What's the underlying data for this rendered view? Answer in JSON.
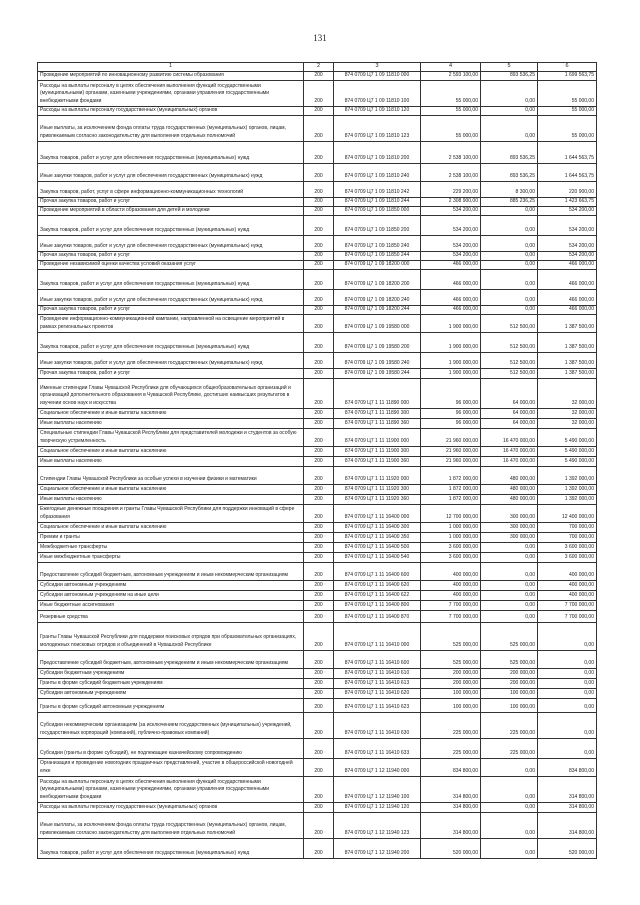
{
  "page_number": "131",
  "header": [
    "1",
    "2",
    "3",
    "4",
    "5",
    "6"
  ],
  "rows": [
    {
      "name": "Проведение мероприятий по инновационному развитию системы образования",
      "c2": "200",
      "code": "874 0709 Ц7 1 09 11810 000",
      "c4": "2 593 100,00",
      "c5": "893 536,25",
      "c6": "1 699 563,75"
    },
    {
      "name": "Расходы на выплаты персоналу в целях обеспечения выполнения функций государственными (муниципальными) органами, казенными учреждениями, органами управления государственными внебюджетными фондами",
      "c2": "200",
      "code": "874 0709 Ц7 1 09 11810 100",
      "c4": "55 000,00",
      "c5": "0,00",
      "c6": "55 000,00"
    },
    {
      "name": "Расходы на выплаты персоналу государственных (муниципальных) органов",
      "c2": "200",
      "code": "874 0709 Ц7 1 09 11810 120",
      "c4": "55 000,00",
      "c5": "0,00",
      "c6": "55 000,00"
    },
    {
      "name": "Иные выплаты, за исключением фонда оплаты труда государственных (муниципальных) органов, лицам, привлекаемым согласно законодательству для выполнения отдельных полномочий",
      "c2": "200",
      "code": "874 0709 Ц7 1 09 11810 123",
      "c4": "55 000,00",
      "c5": "0,00",
      "c6": "55 000,00"
    },
    {
      "name": "Закупка товаров, работ и услуг для обеспечения государственных (муниципальных) нужд",
      "c2": "200",
      "code": "874 0709 Ц7 1 09 11810 200",
      "c4": "2 538 100,00",
      "c5": "893 536,25",
      "c6": "1 644 563,75"
    },
    {
      "name": "Иные закупки товаров, работ и услуг для обеспечения государственных (муниципальных) нужд",
      "c2": "200",
      "code": "874 0709 Ц7 1 09 11810 240",
      "c4": "2 538 100,00",
      "c5": "893 536,25",
      "c6": "1 644 563,75"
    },
    {
      "name": "Закупка товаров, работ, услуг в сфере информационно-коммуникационных технологий",
      "c2": "200",
      "code": "874 0709 Ц7 1 09 11810 242",
      "c4": "229 200,00",
      "c5": "8 300,00",
      "c6": "220 900,00"
    },
    {
      "name": "Прочая закупка товаров, работ и услуг",
      "c2": "200",
      "code": "874 0709 Ц7 1 09 11810 244",
      "c4": "2 308 900,00",
      "c5": "885 236,25",
      "c6": "1 423 663,75"
    },
    {
      "name": "Проведение мероприятий в области образования для детей и молодежи",
      "c2": "200",
      "code": "874 0709 Ц7 1 09 11850 000",
      "c4": "534 200,00",
      "c5": "0,00",
      "c6": "534 200,00"
    },
    {
      "name": "Закупка товаров, работ и услуг для обеспечения государственных (муниципальных) нужд",
      "c2": "200",
      "code": "874 0709 Ц7 1 09 11850 200",
      "c4": "534 200,00",
      "c5": "0,00",
      "c6": "534 200,00"
    },
    {
      "name": "Иные закупки товаров, работ и услуг для обеспечения государственных (муниципальных) нужд",
      "c2": "200",
      "code": "874 0709 Ц7 1 09 11850 240",
      "c4": "534 200,00",
      "c5": "0,00",
      "c6": "534 200,00"
    },
    {
      "name": "Прочая закупка товаров, работ и услуг",
      "c2": "200",
      "code": "874 0709 Ц7 1 09 11850 244",
      "c4": "534 200,00",
      "c5": "0,00",
      "c6": "534 200,00"
    },
    {
      "name": "Проведение независимой оценки качества условий оказания услуг",
      "c2": "200",
      "code": "874 0709 Ц7 1 09 18200 000",
      "c4": "466 000,00",
      "c5": "0,00",
      "c6": "466 000,00"
    },
    {
      "name": "Закупка товаров, работ и услуг для обеспечения государственных (муниципальных) нужд",
      "c2": "200",
      "code": "874 0709 Ц7 1 09 18200 200",
      "c4": "466 000,00",
      "c5": "0,00",
      "c6": "466 000,00"
    },
    {
      "name": "Иные закупки товаров, работ и услуг для обеспечения государственных (муниципальных) нужд",
      "c2": "200",
      "code": "874 0709 Ц7 1 09 18200 240",
      "c4": "466 000,00",
      "c5": "0,00",
      "c6": "466 000,00"
    },
    {
      "name": "Прочая закупка товаров, работ и услуг",
      "c2": "200",
      "code": "874 0709 Ц7 1 09 18200 244",
      "c4": "466 000,00",
      "c5": "0,00",
      "c6": "466 000,00"
    },
    {
      "name": "Проведение информационно-коммуникационной кампании, направленной на освещение мероприятий в рамках региональных проектов",
      "c2": "200",
      "code": "874 0709 Ц7 1 09 19580 000",
      "c4": "1 900 000,00",
      "c5": "512 500,00",
      "c6": "1 387 500,00"
    },
    {
      "name": "Закупка товаров, работ и услуг для обеспечения государственных (муниципальных) нужд",
      "c2": "200",
      "code": "874 0709 Ц7 1 09 19580 200",
      "c4": "1 900 000,00",
      "c5": "512 500,00",
      "c6": "1 387 500,00"
    },
    {
      "name": "Иные закупки товаров, работ и услуг для обеспечения государственных (муниципальных) нужд",
      "c2": "200",
      "code": "874 0709 Ц7 1 09 19580 240",
      "c4": "1 900 000,00",
      "c5": "512 500,00",
      "c6": "1 387 500,00"
    },
    {
      "name": "Прочая закупка товаров, работ и услуг",
      "c2": "200",
      "code": "874 0709 Ц7 1 09 19580 244",
      "c4": "1 900 000,00",
      "c5": "512 500,00",
      "c6": "1 387 500,00"
    },
    {
      "name": "Именные стипендии Главы Чувашской Республики для обучающихся общеобразовательных организаций и организаций дополнительного образования в Чувашской Республике, достигших наивысших результатов в изучении основ наук и искусства",
      "c2": "200",
      "code": "874 0709 Ц7 1 11 11890 000",
      "c4": "96 000,00",
      "c5": "64 000,00",
      "c6": "32 000,00"
    },
    {
      "name": "Социальное обеспечение и иные выплаты населению",
      "c2": "200",
      "code": "874 0709 Ц7 1 11 11890 300",
      "c4": "96 000,00",
      "c5": "64 000,00",
      "c6": "32 000,00"
    },
    {
      "name": "Иные выплаты населению",
      "c2": "200",
      "code": "874 0709 Ц7 1 11 11890 360",
      "c4": "96 000,00",
      "c5": "64 000,00",
      "c6": "32 000,00"
    },
    {
      "name": "Специальные стипендии Главы Чувашской Республики для представителей молодежи и студентов за особую творческую устремленность",
      "c2": "200",
      "code": "874 0709 Ц7 1 11 11900 000",
      "c4": "21 960 000,00",
      "c5": "16 470 000,00",
      "c6": "5 490 000,00"
    },
    {
      "name": "Социальное обеспечение и иные выплаты населению",
      "c2": "200",
      "code": "874 0709 Ц7 1 11 11900 300",
      "c4": "21 960 000,00",
      "c5": "16 470 000,00",
      "c6": "5 490 000,00"
    },
    {
      "name": "Иные выплаты населению",
      "c2": "200",
      "code": "874 0709 Ц7 1 11 11900 360",
      "c4": "21 960 000,00",
      "c5": "16 470 000,00",
      "c6": "5 490 000,00"
    },
    {
      "name": "Стипендии Главы Чувашской Республики за особые успехи в изучении физики и математики",
      "c2": "200",
      "code": "874 0709 Ц7 1 11 11920 000",
      "c4": "1 872 000,00",
      "c5": "480 000,00",
      "c6": "1 392 000,00"
    },
    {
      "name": "Социальное обеспечение и иные выплаты населению",
      "c2": "200",
      "code": "874 0709 Ц7 1 11 11920 300",
      "c4": "1 872 000,00",
      "c5": "480 000,00",
      "c6": "1 392 000,00"
    },
    {
      "name": "Иные выплаты населению",
      "c2": "200",
      "code": "874 0709 Ц7 1 11 11920 360",
      "c4": "1 872 000,00",
      "c5": "480 000,00",
      "c6": "1 392 000,00"
    },
    {
      "name": "Ежегодные денежные поощрения и гранты Главы Чувашской Республики для поддержки инноваций в сфере образования",
      "c2": "200",
      "code": "874 0709 Ц7 1 11 16400 000",
      "c4": "12 700 000,00",
      "c5": "300 000,00",
      "c6": "12 400 000,00"
    },
    {
      "name": "Социальное обеспечение и иные выплаты населению",
      "c2": "200",
      "code": "874 0709 Ц7 1 11 16400 300",
      "c4": "1 000 000,00",
      "c5": "300 000,00",
      "c6": "700 000,00"
    },
    {
      "name": "Премии и гранты",
      "c2": "200",
      "code": "874 0709 Ц7 1 11 16400 350",
      "c4": "1 000 000,00",
      "c5": "300 000,00",
      "c6": "700 000,00"
    },
    {
      "name": "Межбюджетные трансферты",
      "c2": "200",
      "code": "874 0709 Ц7 1 11 16400 500",
      "c4": "3 600 000,00",
      "c5": "0,00",
      "c6": "3 600 000,00"
    },
    {
      "name": "Иные межбюджетные трансферты",
      "c2": "200",
      "code": "874 0709 Ц7 1 11 16400 540",
      "c4": "3 600 000,00",
      "c5": "0,00",
      "c6": "3 600 000,00"
    },
    {
      "name": "Предоставление субсидий бюджетным, автономным учреждениям и иным некоммерческим организациям",
      "c2": "200",
      "code": "874 0709 Ц7 1 11 16400 600",
      "c4": "400 000,00",
      "c5": "0,00",
      "c6": "400 000,00"
    },
    {
      "name": "Субсидии автономным учреждениям",
      "c2": "200",
      "code": "874 0709 Ц7 1 11 16400 620",
      "c4": "400 000,00",
      "c5": "0,00",
      "c6": "400 000,00"
    },
    {
      "name": "Субсидии автономным учреждениям на иные цели",
      "c2": "200",
      "code": "874 0709 Ц7 1 11 16400 622",
      "c4": "400 000,00",
      "c5": "0,00",
      "c6": "400 000,00"
    },
    {
      "name": "Иные бюджетные ассигнования",
      "c2": "200",
      "code": "874 0709 Ц7 1 11 16400 800",
      "c4": "7 700 000,00",
      "c5": "0,00",
      "c6": "7 700 000,00"
    },
    {
      "name": "Резервные средства",
      "c2": "200",
      "code": "874 0709 Ц7 1 11 16400 870",
      "c4": "7 700 000,00",
      "c5": "0,00",
      "c6": "7 700 000,00"
    },
    {
      "name": "Гранты Главы Чувашской Республики для поддержки поисковых отрядов при образовательных организациях, молодежных поисковых отрядов и объединений в Чувашской Республике",
      "c2": "200",
      "code": "874 0709 Ц7 1 11 16410 000",
      "c4": "525 000,00",
      "c5": "525 000,00",
      "c6": "0,00"
    },
    {
      "name": "Предоставление субсидий бюджетным, автономным учреждениям и иным некоммерческим организациям",
      "c2": "200",
      "code": "874 0709 Ц7 1 11 16410 600",
      "c4": "525 000,00",
      "c5": "525 000,00",
      "c6": "0,00"
    },
    {
      "name": "Субсидии бюджетным учреждениям",
      "c2": "200",
      "code": "874 0709 Ц7 1 11 16410 610",
      "c4": "200 000,00",
      "c5": "200 000,00",
      "c6": "0,00"
    },
    {
      "name": "Гранты в форме субсидий бюджетным учреждениям",
      "c2": "200",
      "code": "874 0709 Ц7 1 11 16410 613",
      "c4": "200 000,00",
      "c5": "200 000,00",
      "c6": "0,00"
    },
    {
      "name": "Субсидии автономным учреждениям",
      "c2": "200",
      "code": "874 0709 Ц7 1 11 16410 620",
      "c4": "100 000,00",
      "c5": "100 000,00",
      "c6": "0,00"
    },
    {
      "name": "Гранты в форме субсидий автономным учреждениям",
      "c2": "200",
      "code": "874 0709 Ц7 1 11 16410 623",
      "c4": "100 000,00",
      "c5": "100 000,00",
      "c6": "0,00"
    },
    {
      "name": "Субсидии некоммерческим организациям (за исключением государственных (муниципальных) учреждений, государственных корпораций (компаний), публично-правовых компаний)",
      "c2": "200",
      "code": "874 0709 Ц7 1 11 16410 630",
      "c4": "225 000,00",
      "c5": "225 000,00",
      "c6": "0,00"
    },
    {
      "name": "Субсидии (гранты в форме субсидий), не подлежащие казначейскому сопровождению",
      "c2": "200",
      "code": "874 0709 Ц7 1 11 16410 633",
      "c4": "225 000,00",
      "c5": "225 000,00",
      "c6": "0,00"
    },
    {
      "name": "Организация и проведение новогодних праздничных представлений, участие в общероссийской новогодней елке",
      "c2": "200",
      "code": "874 0709 Ц7 1 12 11940 000",
      "c4": "834 800,00",
      "c5": "0,00",
      "c6": "834 800,00"
    },
    {
      "name": "Расходы на выплаты персоналу в целях обеспечения выполнения функций государственными (муниципальными) органами, казенными учреждениями, органами управления государственными внебюджетными фондами",
      "c2": "200",
      "code": "874 0709 Ц7 1 12 11940 100",
      "c4": "314 800,00",
      "c5": "0,00",
      "c6": "314 800,00"
    },
    {
      "name": "Расходы на выплаты персоналу государственных (муниципальных) органов",
      "c2": "200",
      "code": "874 0709 Ц7 1 12 11940 120",
      "c4": "314 800,00",
      "c5": "0,00",
      "c6": "314 800,00"
    },
    {
      "name": "Иные выплаты, за исключением фонда оплаты труда государственных (муниципальных) органов, лицам, привлекаемым согласно законодательству для выполнения отдельных полномочий",
      "c2": "200",
      "code": "874 0709 Ц7 1 12 11940 123",
      "c4": "314 800,00",
      "c5": "0,00",
      "c6": "314 800,00"
    },
    {
      "name": "Закупка товаров, работ и услуг для обеспечения государственных (муниципальных) нужд",
      "c2": "200",
      "code": "874 0709 Ц7 1 12 11940 200",
      "c4": "520 000,00",
      "c5": "0,00",
      "c6": "520 000,00"
    }
  ]
}
